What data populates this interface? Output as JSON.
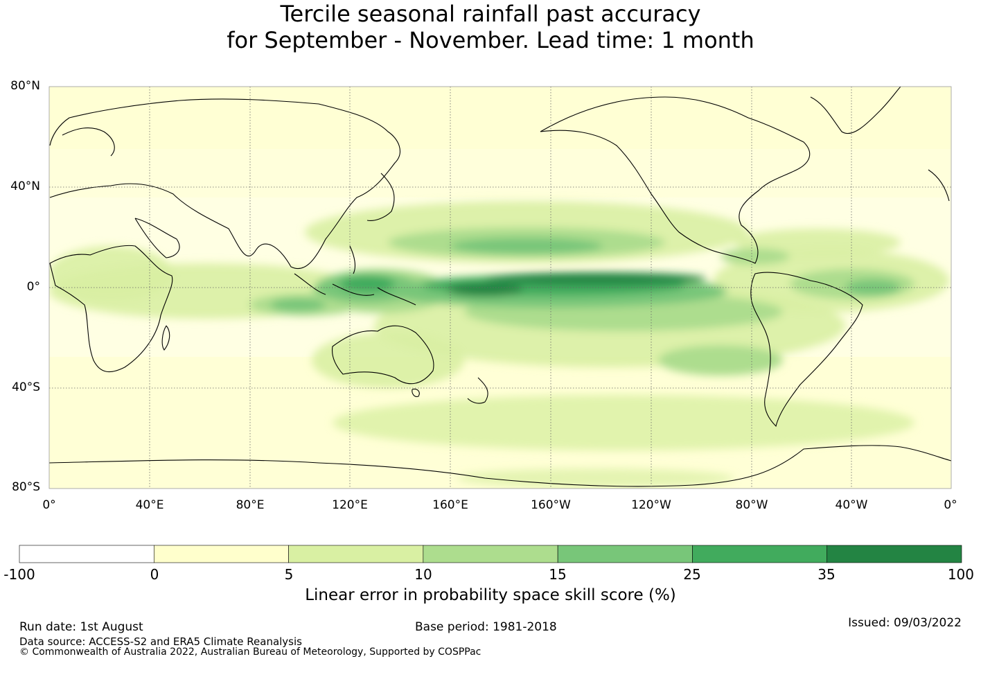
{
  "title": {
    "line1": "Tercile seasonal rainfall past accuracy",
    "line2": "for September - November. Lead time: 1 month"
  },
  "map": {
    "lat_labels": [
      "80°N",
      "40°N",
      "0°",
      "40°S",
      "80°S"
    ],
    "lon_labels": [
      "0°",
      "40°E",
      "80°E",
      "120°E",
      "160°E",
      "160°W",
      "120°W",
      "80°W",
      "40°W",
      "0°"
    ],
    "grid": true
  },
  "colorbar": {
    "ticks": [
      "-100",
      "0",
      "5",
      "10",
      "15",
      "25",
      "35",
      "100"
    ],
    "colors": [
      "#ffffff",
      "#ffffcc",
      "#d9f0a3",
      "#addd8e",
      "#78c679",
      "#41ab5d",
      "#238443"
    ],
    "title": "Linear error in probability space skill score (%)"
  },
  "footer": {
    "run_date": "Run date: 1st August",
    "base_period": "Base period: 1981-2018",
    "issued": "Issued: 09/03/2022",
    "data_source": "Data source: ACCESS-S2 and ERA5 Climate Reanalysis",
    "copyright": "© Commonwealth of Australia 2022, Australian Bureau of Meteorology, Supported by COSPPac"
  }
}
